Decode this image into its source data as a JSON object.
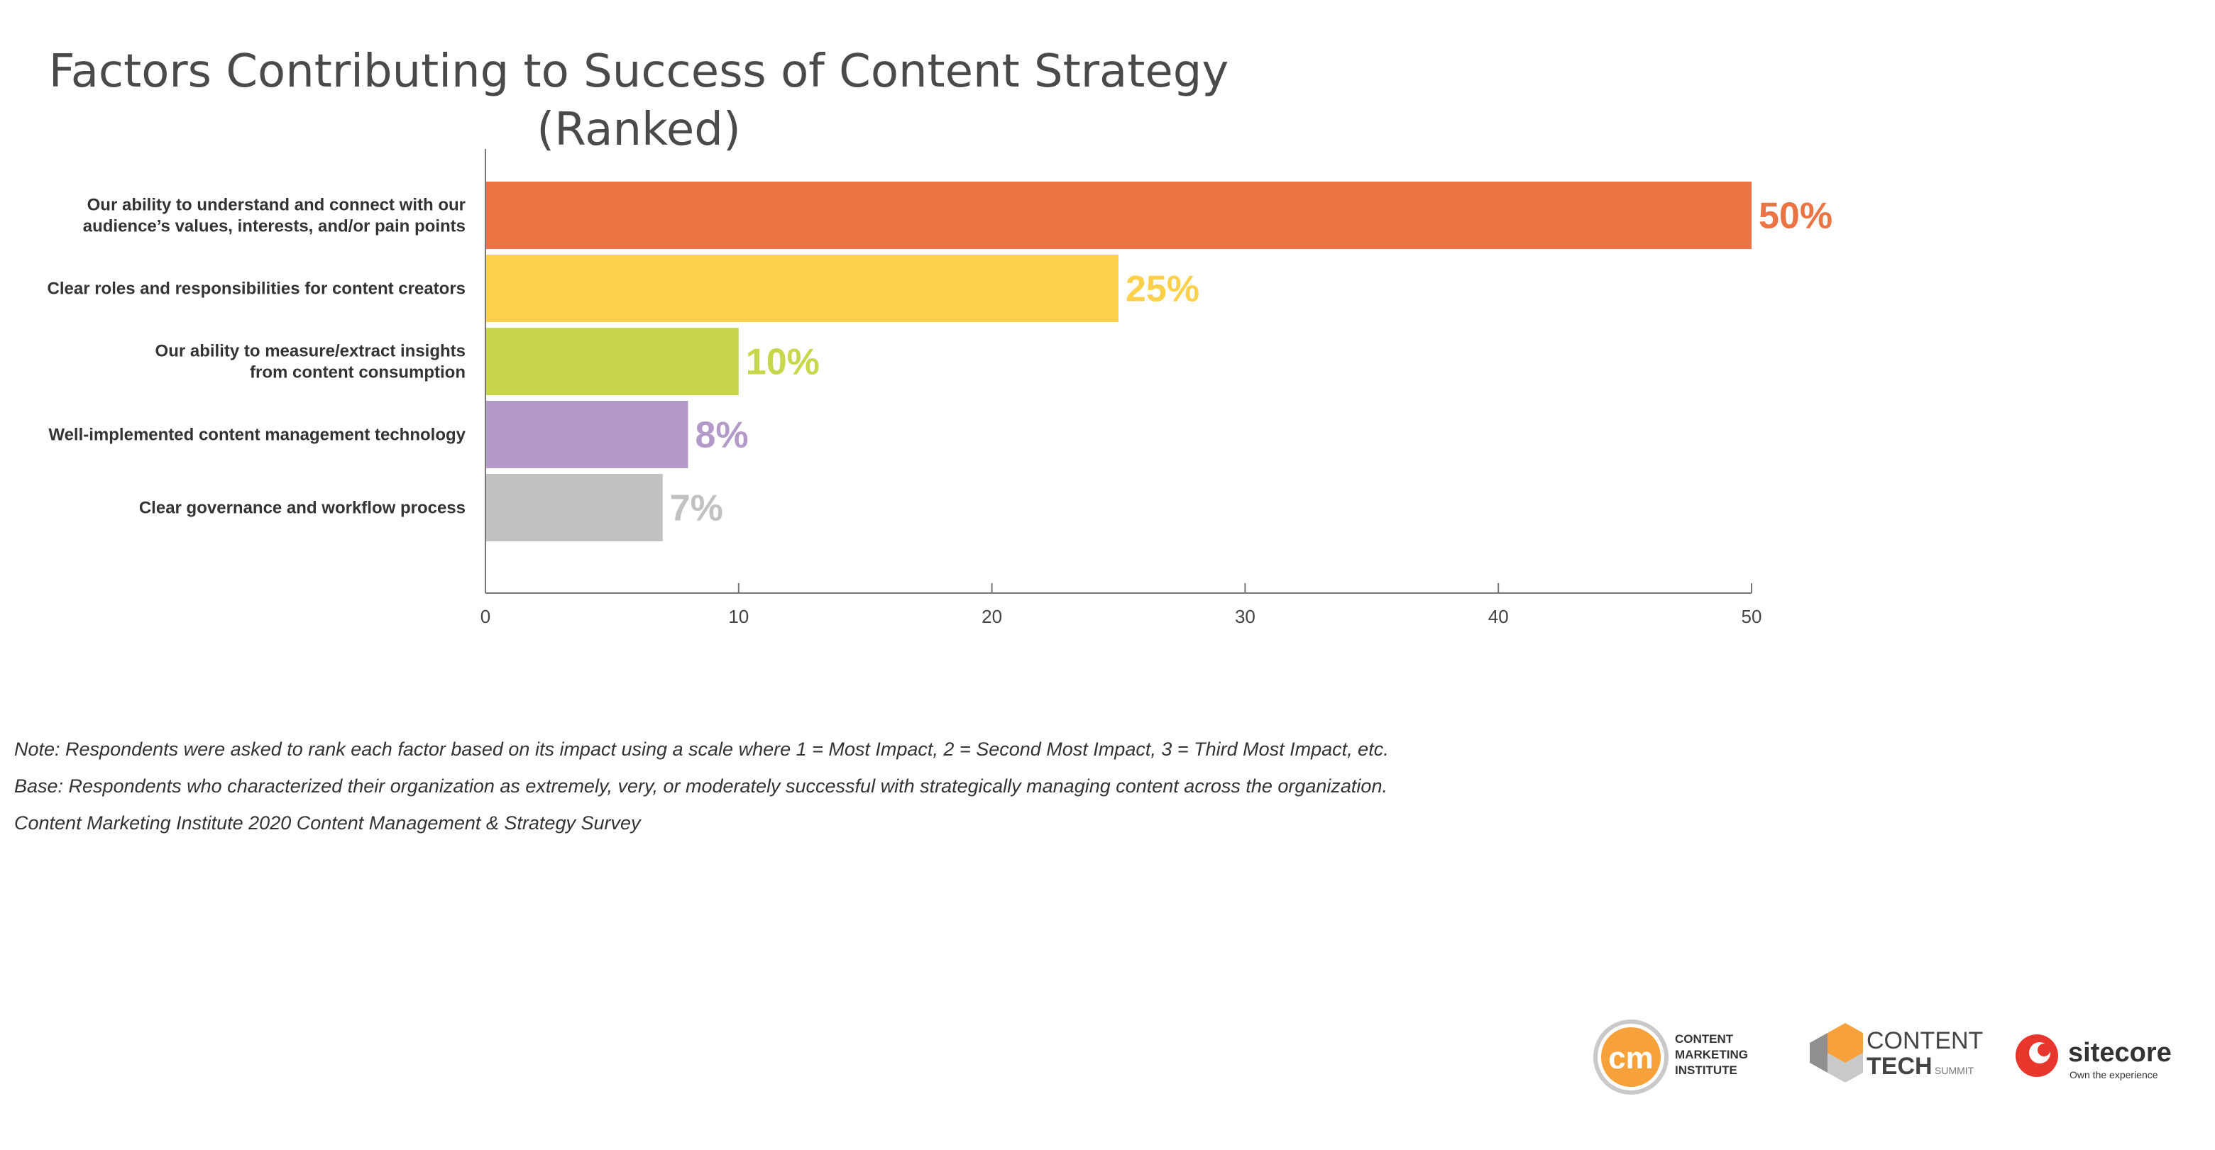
{
  "chart_data": {
    "type": "bar",
    "orientation": "horizontal",
    "title_line1": "Factors Contributing to Success of Content Strategy",
    "title_line2": "(Ranked)",
    "categories": [
      [
        "Our ability to understand and connect with our",
        "audience’s values, interests, and/or pain points"
      ],
      [
        "Clear roles and responsibilities for content creators"
      ],
      [
        "Our ability to measure/extract insights",
        "from content consumption"
      ],
      [
        "Well-implemented content management technology"
      ],
      [
        "Clear governance and workflow process"
      ]
    ],
    "values": [
      50,
      25,
      10,
      8,
      7
    ],
    "value_labels": [
      "50%",
      "25%",
      "10%",
      "8%",
      "7%"
    ],
    "colors": [
      "#ec7444",
      "#fdd04b",
      "#c8d64c",
      "#b39ac8",
      "#c0c1c3"
    ],
    "xlim": [
      0,
      50
    ],
    "xticks": [
      0,
      10,
      20,
      30,
      40,
      50
    ],
    "xlabel": "",
    "ylabel": "",
    "grid": false
  },
  "notes": {
    "note": "Note: Respondents were asked to rank each factor based on its impact using a scale where 1 = Most Impact, 2 = Second Most Impact, 3 = Third Most Impact, etc.",
    "base": "Base: Respondents who characterized their organization as extremely, very, or moderately successful with strategically managing content across the organization.",
    "source": "Content Marketing Institute 2020 Content Management & Strategy Survey"
  },
  "logos": {
    "cmi": {
      "mark": "cm",
      "lines": [
        "CONTENT",
        "MARKETING",
        "INSTITUTE"
      ],
      "color": "#f7a13b"
    },
    "cts": {
      "line1": "CONTENT",
      "line2": "TECH",
      "line3": "SUMMIT",
      "color": "#f7a13b"
    },
    "sitecore": {
      "name": "sitecore",
      "tagline": "Own the experience",
      "color": "#e8362d"
    }
  }
}
